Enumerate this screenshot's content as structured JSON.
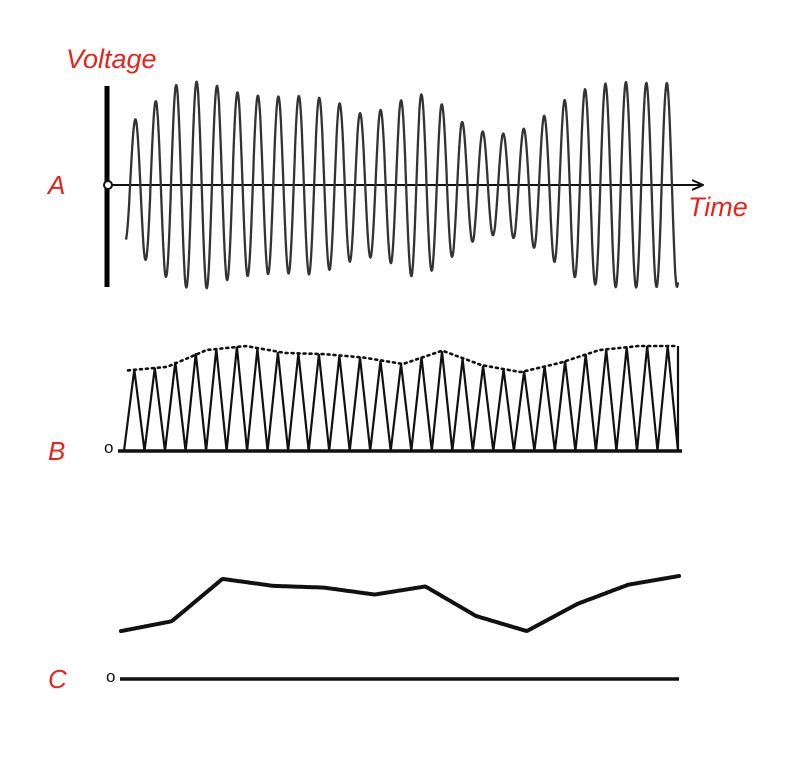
{
  "labels": {
    "y_axis": "Voltage",
    "x_axis": "Time",
    "panel_a": "A",
    "panel_b": "B",
    "panel_c": "C",
    "zero_mark": "o"
  },
  "colors": {
    "label_red": "#e8231c",
    "ink": "#111111"
  },
  "waves": {
    "cycles": 27,
    "envelope": [
      0.55,
      0.78,
      0.98,
      1.0,
      0.9,
      0.86,
      0.85,
      0.86,
      0.8,
      0.68,
      0.74,
      0.9,
      0.78,
      0.56,
      0.48,
      0.52,
      0.68,
      0.88,
      0.97,
      0.99,
      0.98,
      0.98
    ],
    "panel_b_envelope": [
      0.58,
      0.64,
      0.93,
      1.0,
      0.88,
      0.86,
      0.8,
      0.69,
      0.92,
      0.67,
      0.55,
      0.71,
      0.93,
      1.0,
      1.0
    ],
    "panel_c_envelope": [
      0.05,
      0.22,
      0.95,
      0.83,
      0.8,
      0.68,
      0.82,
      0.31,
      0.05,
      0.52,
      0.85,
      1.0
    ]
  }
}
